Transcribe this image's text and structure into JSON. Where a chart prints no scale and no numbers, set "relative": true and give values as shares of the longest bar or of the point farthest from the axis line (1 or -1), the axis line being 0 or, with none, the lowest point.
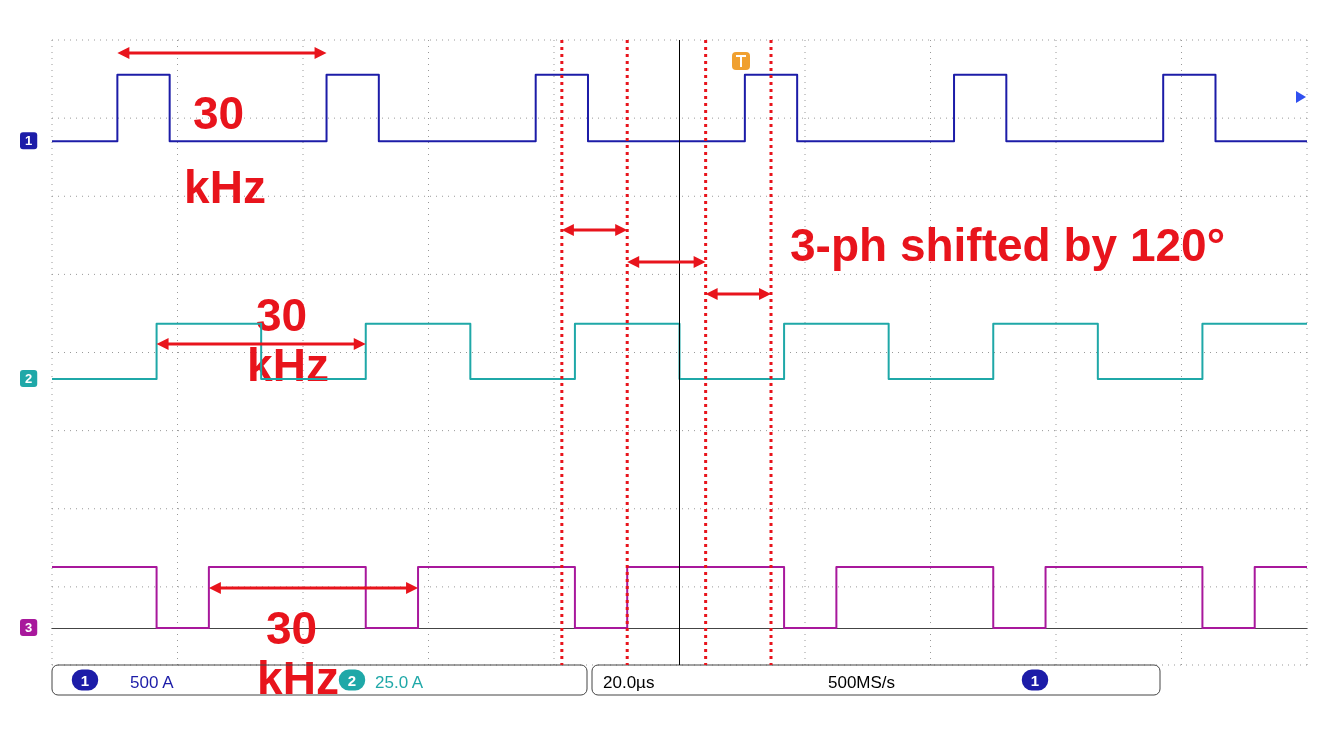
{
  "chart_data": {
    "type": "step",
    "relative": true,
    "legend": false,
    "grid": true,
    "marker": "none",
    "line_style": "solid",
    "categories": [
      null,
      null,
      null,
      null,
      null,
      null,
      null,
      null,
      null,
      null,
      null,
      null,
      null,
      null,
      null,
      null,
      null,
      null,
      null,
      null,
      null,
      null,
      null,
      null,
      null,
      null,
      null,
      null,
      null,
      null,
      null,
      null,
      null,
      null,
      null,
      null,
      null,
      null,
      null,
      null,
      null,
      null,
      null,
      null,
      null,
      null,
      null,
      null,
      null,
      null,
      null,
      null,
      null,
      null,
      null,
      null,
      null,
      null,
      null,
      null,
      null,
      null,
      null,
      null,
      null,
      null,
      null,
      null,
      null,
      null,
      null,
      null,
      null,
      null,
      null,
      null,
      null,
      null,
      null,
      null,
      null,
      null,
      null,
      null,
      null,
      null,
      null,
      null,
      null,
      null,
      null,
      null,
      null,
      null,
      null,
      null,
      null
    ],
    "series": [
      {
        "name": "1",
        "color": "#1c1ca8",
        "values": [
          0.88,
          0.88,
          0.88,
          0.88,
          0.88,
          1,
          1,
          1,
          1,
          0.88,
          0.88,
          0.88,
          0.88,
          0.88,
          0.88,
          0.88,
          0.88,
          0.88,
          0.88,
          0.88,
          0.88,
          1,
          1,
          1,
          1,
          0.88,
          0.88,
          0.88,
          0.88,
          0.88,
          0.88,
          0.88,
          0.88,
          0.88,
          0.88,
          0.88,
          0.88,
          1,
          1,
          1,
          1,
          0.88,
          0.88,
          0.88,
          0.88,
          0.88,
          0.88,
          0.88,
          0.88,
          0.88,
          0.88,
          0.88,
          0.88,
          1,
          1,
          1,
          1,
          0.88,
          0.88,
          0.88,
          0.88,
          0.88,
          0.88,
          0.88,
          0.88,
          0.88,
          0.88,
          0.88,
          0.88,
          1,
          1,
          1,
          1,
          0.88,
          0.88,
          0.88,
          0.88,
          0.88,
          0.88,
          0.88,
          0.88,
          0.88,
          0.88,
          0.88,
          0.88,
          1,
          1,
          1,
          1,
          0.88,
          0.88,
          0.88,
          0.88,
          0.88,
          0.88,
          0.88,
          0.88
        ]
      },
      {
        "name": "2",
        "color": "#1fa8a8",
        "values": [
          0.45,
          0.45,
          0.45,
          0.45,
          0.45,
          0.45,
          0.45,
          0.45,
          0.55,
          0.55,
          0.55,
          0.55,
          0.55,
          0.55,
          0.55,
          0.55,
          0.45,
          0.45,
          0.45,
          0.45,
          0.45,
          0.45,
          0.45,
          0.45,
          0.55,
          0.55,
          0.55,
          0.55,
          0.55,
          0.55,
          0.55,
          0.55,
          0.45,
          0.45,
          0.45,
          0.45,
          0.45,
          0.45,
          0.45,
          0.45,
          0.55,
          0.55,
          0.55,
          0.55,
          0.55,
          0.55,
          0.55,
          0.55,
          0.45,
          0.45,
          0.45,
          0.45,
          0.45,
          0.45,
          0.45,
          0.45,
          0.55,
          0.55,
          0.55,
          0.55,
          0.55,
          0.55,
          0.55,
          0.55,
          0.45,
          0.45,
          0.45,
          0.45,
          0.45,
          0.45,
          0.45,
          0.45,
          0.55,
          0.55,
          0.55,
          0.55,
          0.55,
          0.55,
          0.55,
          0.55,
          0.45,
          0.45,
          0.45,
          0.45,
          0.45,
          0.45,
          0.45,
          0.45,
          0.55,
          0.55,
          0.55,
          0.55,
          0.55,
          0.55,
          0.55,
          0.55,
          0.55
        ]
      },
      {
        "name": "3",
        "color": "#a8189c",
        "values": [
          0.11,
          0.11,
          0.11,
          0.11,
          0.11,
          0.11,
          0.11,
          0.11,
          0,
          0,
          0,
          0,
          0.11,
          0.11,
          0.11,
          0.11,
          0.11,
          0.11,
          0.11,
          0.11,
          0.11,
          0.11,
          0.11,
          0.11,
          0,
          0,
          0,
          0,
          0.11,
          0.11,
          0.11,
          0.11,
          0.11,
          0.11,
          0.11,
          0.11,
          0.11,
          0.11,
          0.11,
          0.11,
          0,
          0,
          0,
          0,
          0.11,
          0.11,
          0.11,
          0.11,
          0.11,
          0.11,
          0.11,
          0.11,
          0.11,
          0.11,
          0.11,
          0.11,
          0,
          0,
          0,
          0,
          0.11,
          0.11,
          0.11,
          0.11,
          0.11,
          0.11,
          0.11,
          0.11,
          0.11,
          0.11,
          0.11,
          0.11,
          0,
          0,
          0,
          0,
          0.11,
          0.11,
          0.11,
          0.11,
          0.11,
          0.11,
          0.11,
          0.11,
          0.11,
          0.11,
          0.11,
          0.11,
          0,
          0,
          0,
          0,
          0.11,
          0.11,
          0.11,
          0.11,
          0.11
        ]
      }
    ],
    "annotations": [
      "30 kHz",
      "30 kHz",
      "30 kHz",
      "3-ph shifted by 120°",
      "500 A",
      "25.0 A",
      "20.0µs",
      "500MS/s"
    ]
  }
}
